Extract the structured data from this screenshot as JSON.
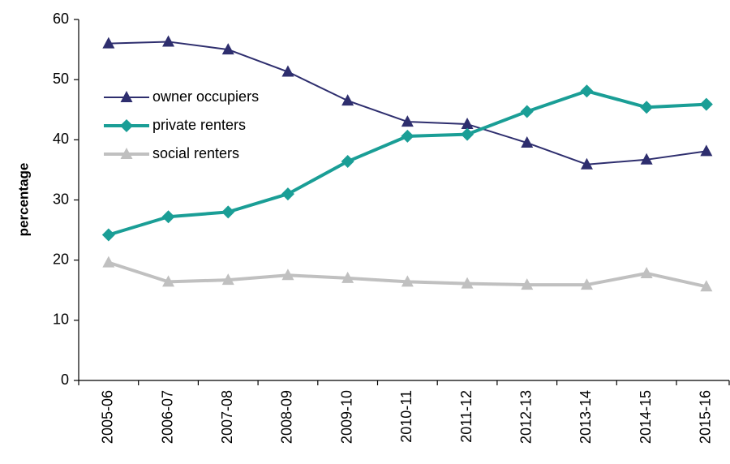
{
  "chart_data": {
    "type": "line",
    "y_label": "percentage",
    "categories": [
      "2005-06",
      "2006-07",
      "2007-08",
      "2008-09",
      "2009-10",
      "2010-11",
      "2011-12",
      "2012-13",
      "2013-14",
      "2014-15",
      "2015-16"
    ],
    "series": [
      {
        "name": "owner occupiers",
        "color": "#2e2e6e",
        "marker": "triangle",
        "values": [
          56.0,
          56.3,
          55.0,
          51.3,
          46.5,
          43.0,
          42.6,
          39.5,
          35.9,
          36.7,
          38.1
        ]
      },
      {
        "name": "private renters",
        "color": "#1a9e96",
        "marker": "diamond",
        "values": [
          24.2,
          27.2,
          28.0,
          31.0,
          36.4,
          40.6,
          40.9,
          44.7,
          48.1,
          45.4,
          45.9
        ]
      },
      {
        "name": "social renters",
        "color": "#c0c0c0",
        "marker": "triangle",
        "values": [
          19.6,
          16.4,
          16.7,
          17.5,
          17.0,
          16.4,
          16.1,
          15.9,
          15.9,
          17.8,
          15.6
        ]
      }
    ],
    "ylim": [
      0,
      60
    ],
    "yticks": [
      0,
      10,
      20,
      30,
      40,
      50,
      60
    ],
    "grid": false,
    "legend": "top-left"
  }
}
